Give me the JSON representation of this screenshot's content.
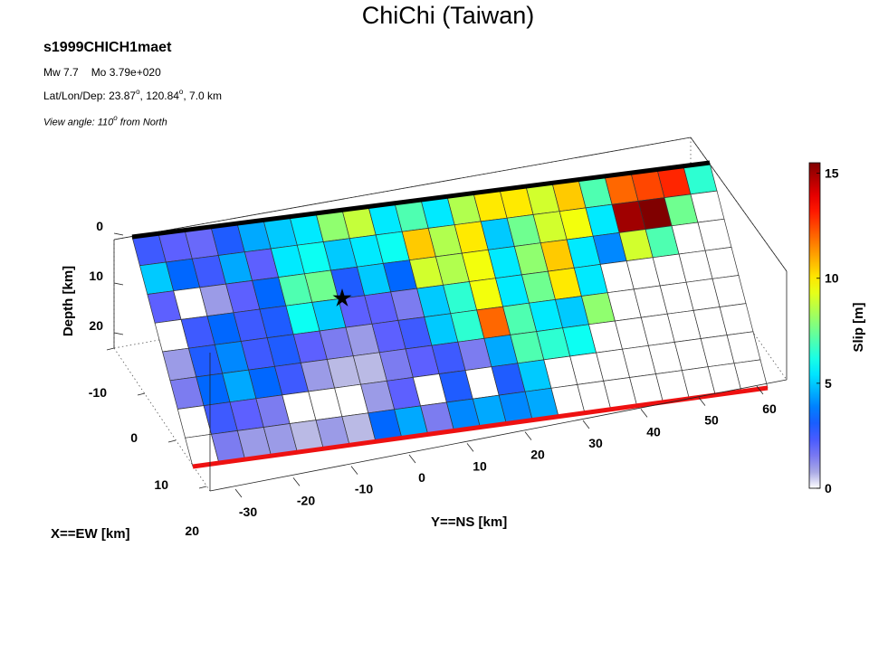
{
  "chart_data": {
    "type": "heatmap",
    "title": "ChiChi (Taiwan)",
    "model_name": "s1999CHICH1maet",
    "mw_label": "Mw 7.7",
    "mo_label": "Mo 3.79e+020",
    "location": {
      "prefix": "Lat/Lon/Dep: ",
      "lat": "23.87",
      "lon": "120.84",
      "tail": ", 7.0 km",
      "sup": "o"
    },
    "view": {
      "prefix": "View angle: 110",
      "sup": "o",
      "tail": " from North"
    },
    "zlabel": "Depth [km]",
    "xlabel": "X==EW [km]",
    "ylabel": "Y==NS [km]",
    "colorbar_label": "Slip [m]",
    "depth_ticks": [
      0,
      10,
      20
    ],
    "ew_ticks": [
      -10,
      0,
      10,
      20
    ],
    "ns_ticks": [
      -30,
      -20,
      -10,
      0,
      10,
      20,
      30,
      40,
      50,
      60
    ],
    "colorbar_ticks": [
      0,
      5,
      10,
      15
    ],
    "clim": [
      0,
      15.5
    ],
    "hypocenter": {
      "along_strike_km": 0,
      "down_dip_km": 10
    },
    "n_strike": 22,
    "n_dip": 8,
    "slip": [
      [
        2.5,
        2.0,
        1.8,
        3.0,
        4.5,
        5.0,
        5.5,
        8.0,
        8.8,
        5.5,
        7.0,
        5.5,
        8.5,
        10.0,
        10.0,
        9.0,
        10.5,
        7.0,
        12.0,
        12.5,
        13.0,
        6.5
      ],
      [
        5.0,
        3.5,
        2.5,
        4.5,
        2.0,
        5.5,
        6.0,
        5.0,
        5.5,
        6.0,
        10.5,
        8.5,
        10.0,
        5.0,
        7.5,
        9.0,
        9.5,
        5.5,
        15.0,
        15.5,
        7.5,
        0.0
      ],
      [
        2.0,
        0.0,
        1.0,
        2.0,
        3.5,
        7.0,
        7.5,
        3.0,
        5.0,
        3.5,
        9.0,
        8.5,
        9.5,
        5.5,
        8.0,
        10.5,
        5.5,
        4.0,
        9.0,
        7.0,
        0.0,
        0.0
      ],
      [
        0.0,
        2.5,
        3.5,
        2.5,
        3.0,
        6.0,
        5.0,
        2.0,
        2.0,
        1.5,
        5.0,
        6.5,
        9.5,
        5.5,
        7.5,
        10.0,
        5.5,
        0.0,
        0.0,
        0.0,
        0.0,
        0.0
      ],
      [
        1.0,
        3.0,
        4.0,
        2.5,
        3.0,
        2.0,
        1.5,
        1.0,
        2.0,
        2.5,
        5.0,
        6.5,
        12.0,
        7.0,
        5.5,
        5.0,
        8.0,
        0.0,
        0.0,
        0.0,
        0.0,
        0.0
      ],
      [
        1.5,
        3.5,
        4.5,
        3.5,
        2.5,
        1.0,
        0.5,
        0.5,
        1.5,
        2.0,
        2.5,
        1.5,
        4.5,
        7.0,
        6.5,
        6.0,
        0.0,
        0.0,
        0.0,
        0.0,
        0.0,
        0.0
      ],
      [
        0.0,
        2.5,
        2.0,
        1.5,
        0.0,
        0.0,
        0.0,
        1.0,
        2.0,
        0.0,
        3.0,
        0.0,
        3.0,
        5.0,
        0.0,
        0.0,
        0.0,
        0.0,
        0.0,
        0.0,
        0.0,
        0.0
      ],
      [
        0.0,
        1.5,
        1.0,
        1.0,
        0.5,
        1.0,
        0.5,
        3.5,
        4.5,
        1.5,
        4.0,
        4.5,
        4.0,
        4.5,
        0.0,
        0.0,
        0.0,
        0.0,
        0.0,
        0.0,
        0.0,
        0.0
      ]
    ]
  },
  "colors": {
    "top_edge": "#000000",
    "bottom_edge": "#ee1111",
    "grid_line": "#333333"
  }
}
